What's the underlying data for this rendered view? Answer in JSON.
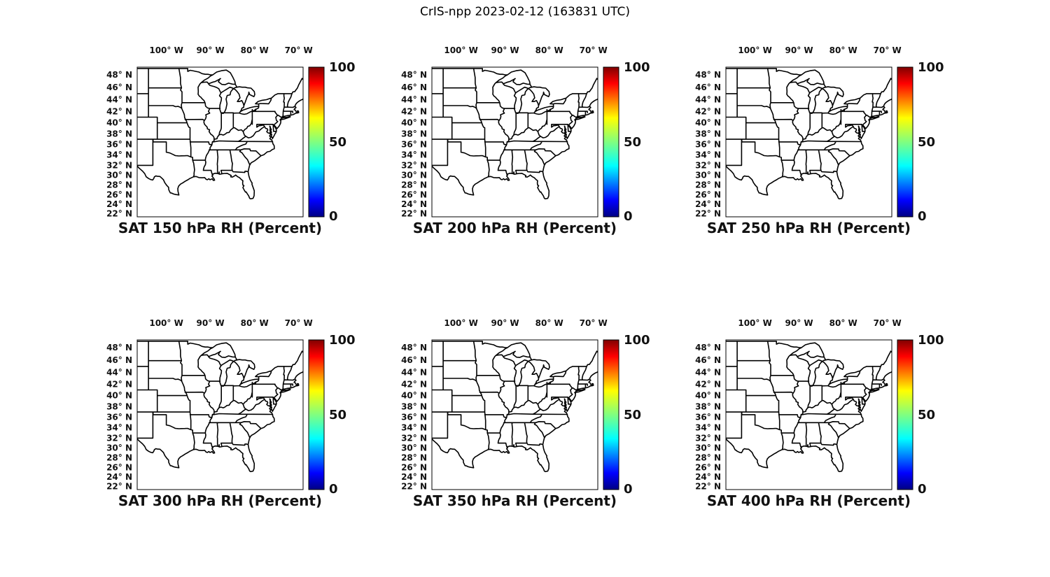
{
  "chart_data": {
    "type": "map",
    "title": "CrIS-npp 2023-02-12 (163831 UTC)",
    "instrument": "CrIS-npp",
    "timestamp": "2023-02-12 163831 UTC",
    "layout": {
      "rows": 2,
      "cols": 3,
      "legend_position": "right of each panel",
      "grid": "off"
    },
    "projection": "mercator",
    "basemap": "US state boundaries (no data shading visible)",
    "map_extent": {
      "lon_min": -106.6,
      "lon_max": -69.0,
      "lat_min": 21.3,
      "lat_max": 49.2
    },
    "panels": [
      {
        "title": "SAT 150 hPa RH (Percent)",
        "variable": "RH",
        "pressure_level_hPa": 150,
        "units": "Percent"
      },
      {
        "title": "SAT 200 hPa RH (Percent)",
        "variable": "RH",
        "pressure_level_hPa": 200,
        "units": "Percent"
      },
      {
        "title": "SAT 250 hPa RH (Percent)",
        "variable": "RH",
        "pressure_level_hPa": 250,
        "units": "Percent"
      },
      {
        "title": "SAT 300 hPa RH (Percent)",
        "variable": "RH",
        "pressure_level_hPa": 300,
        "units": "Percent"
      },
      {
        "title": "SAT 350 hPa RH (Percent)",
        "variable": "RH",
        "pressure_level_hPa": 350,
        "units": "Percent"
      },
      {
        "title": "SAT 400 hPa RH (Percent)",
        "variable": "RH",
        "pressure_level_hPa": 400,
        "units": "Percent"
      }
    ],
    "x_axis": {
      "label": "longitude",
      "position": "top",
      "ticks": [
        "100° W",
        "90° W",
        "80° W",
        "70° W"
      ],
      "tick_values": [
        -100,
        -90,
        -80,
        -70
      ]
    },
    "y_axis": {
      "label": "latitude",
      "position": "left",
      "ticks": [
        "48° N",
        "46° N",
        "44° N",
        "42° N",
        "40° N",
        "38° N",
        "36° N",
        "34° N",
        "32° N",
        "30° N",
        "28° N",
        "26° N",
        "24° N",
        "22° N"
      ],
      "tick_values": [
        48,
        46,
        44,
        42,
        40,
        38,
        36,
        34,
        32,
        30,
        28,
        26,
        24,
        22
      ]
    },
    "colorbar": {
      "colormap": "jet",
      "min": 0,
      "max": 100,
      "tick_labels": [
        "100",
        "50",
        "0"
      ],
      "tick_values": [
        100,
        50,
        0
      ],
      "units": "Percent",
      "colors": {
        "top": "#800000",
        "upper": "#ff0000",
        "middle": "#80ff80",
        "lower": "#0000ff",
        "bottom": "#000083"
      }
    },
    "text_color": "#111111",
    "line_color": "#000000",
    "background_color": "#ffffff"
  }
}
